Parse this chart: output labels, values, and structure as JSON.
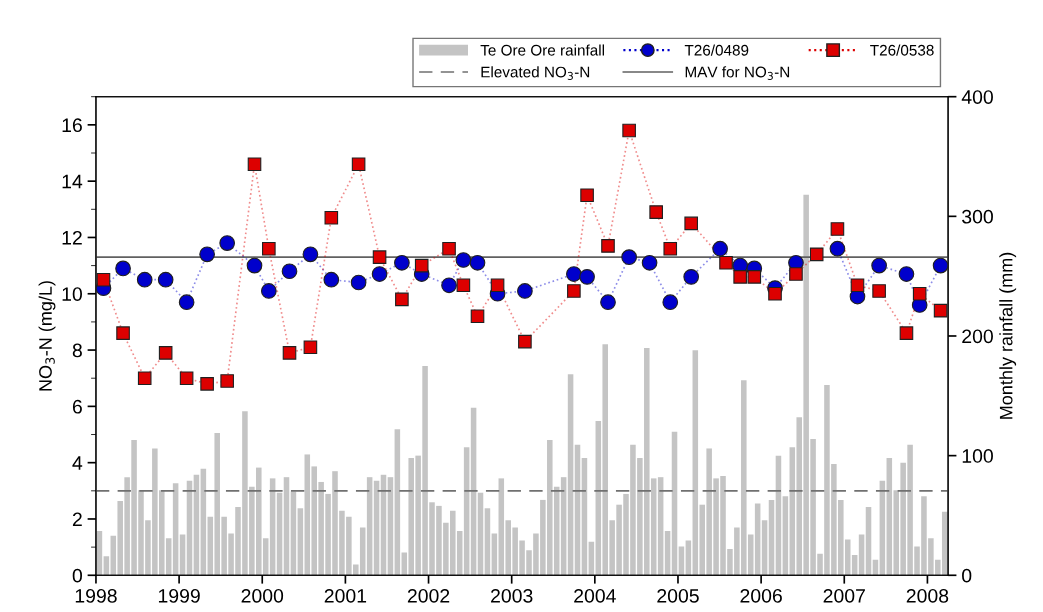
{
  "chart_data": {
    "type": "line",
    "ylabel": "NO$_{3}$-N (mg/L)",
    "y2label": "Monthly rainfall (mm)",
    "xlim": [
      "1998-01-01",
      "2008-04-01"
    ],
    "xticks": [
      "1998",
      "1999",
      "2000",
      "2001",
      "2002",
      "2003",
      "2004",
      "2005",
      "2006",
      "2007",
      "2008"
    ],
    "ylim": [
      0,
      17
    ],
    "yticks": [
      0,
      2,
      4,
      6,
      8,
      10,
      12,
      14,
      16
    ],
    "y2lim": [
      0,
      400
    ],
    "y2ticks": [
      0,
      100,
      200,
      300,
      400
    ],
    "grid": false,
    "legend": "top right",
    "ref_lines": [
      {
        "axis": "y",
        "value": 3,
        "label": "Elevated NO$_{3}$-N",
        "color": "#707070",
        "line_style": "dashed"
      },
      {
        "axis": "y",
        "value": 11.3,
        "label": "MAV for NO$_{3}$-N",
        "color": "#606060",
        "line_style": "solid"
      }
    ],
    "series": [
      {
        "name": "Te Ore Ore rainfall",
        "type": "bar",
        "axis": "y2",
        "color": "#c4c4c4",
        "x": [
          "1998-01",
          "1998-02",
          "1998-03",
          "1998-04",
          "1998-05",
          "1998-06",
          "1998-07",
          "1998-08",
          "1998-09",
          "1998-10",
          "1998-11",
          "1998-12",
          "1999-01",
          "1999-02",
          "1999-03",
          "1999-04",
          "1999-05",
          "1999-06",
          "1999-07",
          "1999-08",
          "1999-09",
          "1999-10",
          "1999-11",
          "1999-12",
          "2000-01",
          "2000-02",
          "2000-03",
          "2000-04",
          "2000-05",
          "2000-06",
          "2000-07",
          "2000-08",
          "2000-09",
          "2000-10",
          "2000-11",
          "2000-12",
          "2001-01",
          "2001-02",
          "2001-03",
          "2001-04",
          "2001-05",
          "2001-06",
          "2001-07",
          "2001-08",
          "2001-09",
          "2001-10",
          "2001-11",
          "2001-12",
          "2002-01",
          "2002-02",
          "2002-03",
          "2002-04",
          "2002-05",
          "2002-06",
          "2002-07",
          "2002-08",
          "2002-09",
          "2002-10",
          "2002-11",
          "2002-12",
          "2003-01",
          "2003-02",
          "2003-03",
          "2003-04",
          "2003-05",
          "2003-06",
          "2003-07",
          "2003-08",
          "2003-09",
          "2003-10",
          "2003-11",
          "2003-12",
          "2004-01",
          "2004-02",
          "2004-03",
          "2004-04",
          "2004-05",
          "2004-06",
          "2004-07",
          "2004-08",
          "2004-09",
          "2004-10",
          "2004-11",
          "2004-12",
          "2005-01",
          "2005-02",
          "2005-03",
          "2005-04",
          "2005-05",
          "2005-06",
          "2005-07",
          "2005-08",
          "2005-09",
          "2005-10",
          "2005-11",
          "2005-12",
          "2006-01",
          "2006-02",
          "2006-03",
          "2006-04",
          "2006-05",
          "2006-06",
          "2006-07",
          "2006-08",
          "2006-09",
          "2006-10",
          "2006-11",
          "2006-12",
          "2007-01",
          "2007-02",
          "2007-03",
          "2007-04",
          "2007-05",
          "2007-06",
          "2007-07",
          "2007-08",
          "2007-09",
          "2007-10",
          "2007-11",
          "2007-12",
          "2008-01",
          "2008-02",
          "2008-03"
        ],
        "values": [
          37,
          16,
          33,
          62,
          82,
          113,
          71,
          46,
          106,
          71,
          31,
          77,
          34,
          79,
          84,
          89,
          49,
          119,
          49,
          35,
          57,
          137,
          74,
          90,
          31,
          81,
          69,
          82,
          70,
          56,
          101,
          91,
          78,
          68,
          87,
          54,
          49,
          9,
          40,
          82,
          79,
          84,
          82,
          122,
          19,
          98,
          100,
          175,
          61,
          58,
          44,
          54,
          37,
          107,
          140,
          69,
          56,
          35,
          81,
          46,
          40,
          29,
          21,
          35,
          63,
          113,
          74,
          82,
          168,
          109,
          98,
          28,
          129,
          193,
          46,
          59,
          68,
          109,
          98,
          190,
          81,
          82,
          37,
          120,
          24,
          29,
          188,
          59,
          106,
          81,
          83,
          22,
          40,
          163,
          34,
          60,
          46,
          63,
          100,
          66,
          107,
          132,
          318,
          114,
          18,
          159,
          93,
          63,
          30,
          17,
          34,
          57,
          13,
          79,
          98,
          71,
          94,
          109,
          24,
          66,
          31,
          13,
          53
        ]
      },
      {
        "name": "T26/0489",
        "axis": "y",
        "color": "#0000cc",
        "marker": "circle",
        "line_style": "dotted",
        "x": [
          "1998-02-03",
          "1998-04-30",
          "1998-08-03",
          "1998-11-03",
          "1999-02-03",
          "1999-05-04",
          "1999-07-31",
          "1999-11-28",
          "2000-01-30",
          "2000-04-30",
          "2000-07-31",
          "2000-10-31",
          "2001-02-28",
          "2001-05-31",
          "2001-09-06",
          "2001-12-02",
          "2002-04-01",
          "2002-06-03",
          "2002-08-04",
          "2002-10-31",
          "2003-02-28",
          "2003-10-01",
          "2003-11-28",
          "2004-02-28",
          "2004-05-31",
          "2004-08-29",
          "2004-11-28",
          "2005-02-28",
          "2005-07-05",
          "2005-10-01",
          "2005-12-02",
          "2006-03-03",
          "2006-06-03",
          "2006-09-02",
          "2006-12-02",
          "2007-02-28",
          "2007-06-03",
          "2007-10-01",
          "2007-11-28",
          "2008-02-28"
        ],
        "values": [
          10.2,
          10.9,
          10.5,
          10.5,
          9.7,
          11.4,
          11.8,
          11.0,
          10.1,
          10.8,
          11.4,
          10.5,
          10.4,
          10.7,
          11.1,
          10.7,
          10.3,
          11.2,
          11.1,
          10.0,
          10.1,
          10.7,
          10.6,
          9.7,
          11.3,
          11.1,
          9.7,
          10.6,
          11.6,
          11.0,
          10.9,
          10.2,
          11.1,
          null,
          11.6,
          9.9,
          11.0,
          10.7,
          9.6,
          11.0
        ]
      },
      {
        "name": "T26/0538",
        "axis": "y",
        "color": "#dd0000",
        "marker": "square",
        "line_style": "dotted",
        "x": [
          "1998-02-03",
          "1998-04-30",
          "1998-08-03",
          "1998-11-03",
          "1999-02-03",
          "1999-05-04",
          "1999-07-31",
          "1999-11-28",
          "2000-01-30",
          "2000-04-30",
          "2000-07-31",
          "2000-10-31",
          "2001-02-28",
          "2001-05-31",
          "2001-09-06",
          "2001-12-02",
          "2002-04-01",
          "2002-06-03",
          "2002-08-04",
          "2002-10-31",
          "2003-02-28",
          "2003-10-01",
          "2003-11-28",
          "2004-02-28",
          "2004-05-31",
          "2004-09-27",
          "2004-11-28",
          "2005-02-28",
          "2005-07-31",
          "2005-10-01",
          "2005-12-02",
          "2006-03-03",
          "2006-06-03",
          "2006-09-02",
          "2006-12-02",
          "2007-02-28",
          "2007-06-03",
          "2007-10-01",
          "2007-11-28",
          "2008-02-28"
        ],
        "values": [
          10.5,
          8.6,
          7.0,
          7.9,
          7.0,
          6.8,
          6.9,
          14.6,
          11.6,
          7.9,
          8.1,
          12.7,
          14.6,
          11.3,
          9.8,
          11.0,
          11.6,
          10.3,
          9.2,
          10.3,
          8.3,
          10.1,
          13.5,
          11.7,
          15.8,
          12.9,
          11.6,
          12.5,
          11.1,
          10.6,
          10.6,
          10.0,
          10.7,
          11.4,
          12.3,
          10.3,
          10.1,
          8.6,
          10.0,
          9.4
        ]
      }
    ]
  }
}
